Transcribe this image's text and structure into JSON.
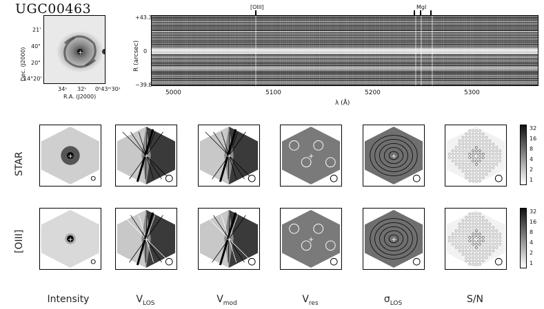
{
  "title": "UGC00463",
  "thumbnail": {
    "ylabel": "Dec. (J2000)",
    "xlabel": "R.A. (J2000)",
    "yticks": [
      "21'",
      "40\"",
      "20\"",
      "14°20'"
    ],
    "xticks": [
      "34ˢ",
      "32ˢ",
      "0ʰ43ᵐ30ˢ"
    ]
  },
  "spectrum": {
    "ylabel": "R (arcsec)",
    "xlabel": "λ (Å)",
    "yticks": [
      "+43.3",
      "0",
      "−39.8"
    ],
    "xticks": [
      "5000",
      "5100",
      "5200",
      "5300"
    ],
    "line_markers": [
      "[OIII]",
      "MgI"
    ]
  },
  "rows": [
    "STAR",
    "[OIII]"
  ],
  "columns": [
    {
      "main": "Intensity",
      "sub": ""
    },
    {
      "main": "V",
      "sub": "LOS"
    },
    {
      "main": "V",
      "sub": "mod"
    },
    {
      "main": "V",
      "sub": "res"
    },
    {
      "main": "σ",
      "sub": "LOS"
    },
    {
      "main": "S/N",
      "sub": ""
    }
  ],
  "colorbar_ticks": [
    "32",
    "16",
    "8",
    "4",
    "2",
    "1"
  ]
}
